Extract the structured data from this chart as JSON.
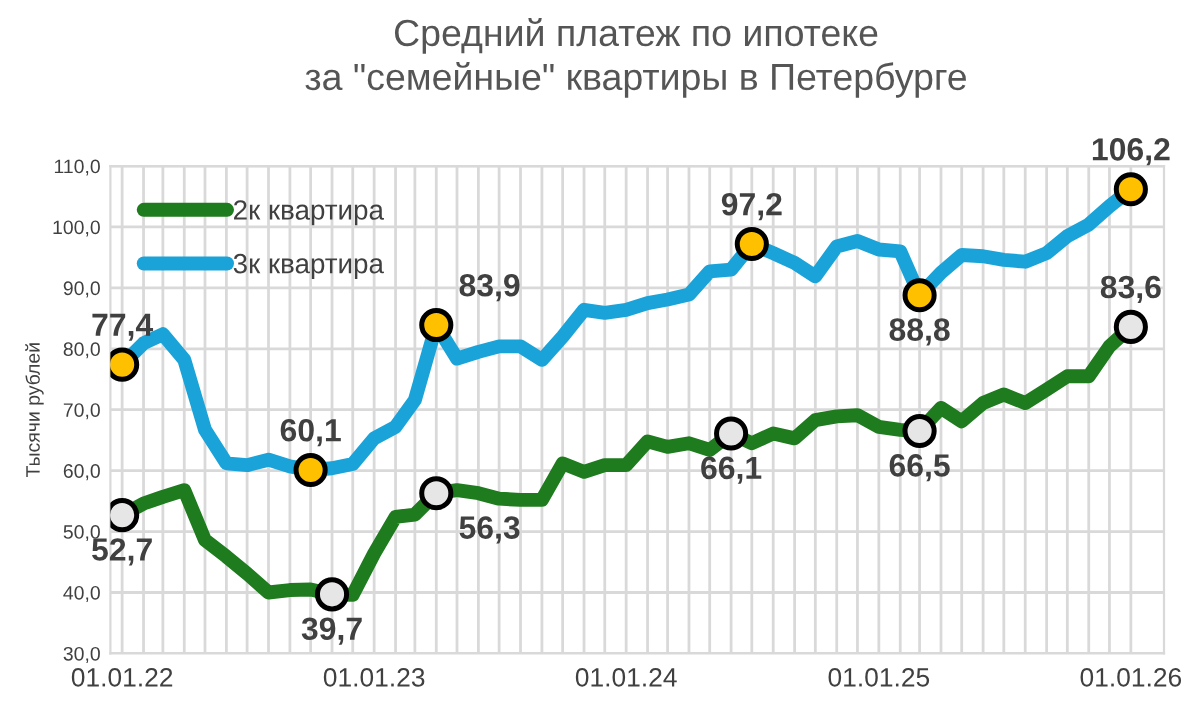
{
  "chart_data": {
    "type": "line",
    "title": "Средний платеж по ипотеке\nза \"семейные\" квартиры в Петербурге",
    "ylabel": "Тысячи рублей",
    "x": [
      "2022-01",
      "2022-02",
      "2022-03",
      "2022-04",
      "2022-05",
      "2022-06",
      "2022-07",
      "2022-08",
      "2022-09",
      "2022-10",
      "2022-11",
      "2022-12",
      "2023-01",
      "2023-02",
      "2023-03",
      "2023-04",
      "2023-05",
      "2023-06",
      "2023-07",
      "2023-08",
      "2023-09",
      "2023-10",
      "2023-11",
      "2023-12",
      "2024-01",
      "2024-02",
      "2024-03",
      "2024-04",
      "2024-05",
      "2024-06",
      "2024-07",
      "2024-08",
      "2024-09",
      "2024-10",
      "2024-11",
      "2024-12",
      "2025-01",
      "2025-02",
      "2025-03",
      "2025-04",
      "2025-05",
      "2025-06",
      "2025-07",
      "2025-08",
      "2025-09",
      "2025-10",
      "2025-11",
      "2025-12",
      "2026-01"
    ],
    "series": [
      {
        "name": "2к квартира",
        "color": "#1e7b1e",
        "values": [
          52.7,
          54.6,
          55.7,
          56.8,
          48.6,
          45.9,
          43.1,
          40.0,
          40.4,
          40.5,
          39.7,
          39.6,
          46.4,
          52.4,
          52.8,
          56.3,
          56.8,
          56.3,
          55.4,
          55.2,
          55.2,
          61.2,
          59.8,
          60.9,
          60.9,
          64.8,
          63.9,
          64.5,
          63.4,
          66.1,
          64.5,
          66.1,
          65.3,
          68.3,
          68.9,
          69.1,
          67.2,
          66.7,
          66.5,
          70.3,
          68.1,
          71.1,
          72.5,
          71.1,
          73.3,
          75.5,
          75.5,
          80.4,
          83.6
        ]
      },
      {
        "name": "3к квартира",
        "color": "#1aa3d9",
        "values": [
          77.4,
          80.9,
          82.4,
          78.2,
          66.7,
          61.2,
          60.9,
          61.8,
          60.7,
          60.1,
          60.4,
          61.1,
          65.3,
          67.2,
          71.6,
          83.9,
          78.4,
          79.5,
          80.4,
          80.4,
          78.2,
          82.0,
          86.4,
          85.9,
          86.4,
          87.5,
          88.1,
          88.9,
          92.7,
          93.0,
          97.2,
          95.7,
          94.1,
          91.9,
          96.8,
          97.7,
          96.3,
          96.0,
          88.8,
          92.5,
          95.4,
          95.2,
          94.6,
          94.3,
          95.7,
          98.5,
          100.4,
          103.4,
          106.2
        ]
      },
      {
        "type": "scatter",
        "color": "#e6e6e6",
        "x": [
          "2022-01",
          "2022-11",
          "2023-04",
          "2024-06",
          "2025-03",
          "2026-01"
        ],
        "values": [
          52.7,
          39.7,
          56.3,
          66.1,
          66.5,
          83.6
        ],
        "value_labels": [
          "52,7",
          "39,7",
          "56,3",
          "66,1",
          "66,5",
          "83,6"
        ]
      },
      {
        "type": "scatter",
        "color": "#ffc000",
        "x": [
          "2022-01",
          "2022-10",
          "2023-04",
          "2024-07",
          "2025-03",
          "2026-01"
        ],
        "values": [
          77.4,
          60.1,
          83.9,
          97.2,
          88.8,
          106.2
        ],
        "value_labels": [
          "77,4",
          "60,1",
          "83,9",
          "97,2",
          "88,8",
          "106,2"
        ]
      }
    ],
    "xlim": [
      "2021-12-15",
      "2026-02-18"
    ],
    "xticks": [
      {
        "value": "2022-01",
        "label": "01.01.22"
      },
      {
        "value": "2022-02",
        "label": null
      },
      {
        "value": "2022-03",
        "label": null
      },
      {
        "value": "2022-04",
        "label": null
      },
      {
        "value": "2022-05",
        "label": null
      },
      {
        "value": "2022-06",
        "label": null
      },
      {
        "value": "2022-07",
        "label": null
      },
      {
        "value": "2022-08",
        "label": null
      },
      {
        "value": "2022-09",
        "label": null
      },
      {
        "value": "2022-10",
        "label": null
      },
      {
        "value": "2022-11",
        "label": null
      },
      {
        "value": "2022-12",
        "label": null
      },
      {
        "value": "2023-01",
        "label": "01.01.23"
      },
      {
        "value": "2023-02",
        "label": null
      },
      {
        "value": "2023-03",
        "label": null
      },
      {
        "value": "2023-04",
        "label": null
      },
      {
        "value": "2023-05",
        "label": null
      },
      {
        "value": "2023-06",
        "label": null
      },
      {
        "value": "2023-07",
        "label": null
      },
      {
        "value": "2023-08",
        "label": null
      },
      {
        "value": "2023-09",
        "label": null
      },
      {
        "value": "2023-10",
        "label": null
      },
      {
        "value": "2023-11",
        "label": null
      },
      {
        "value": "2023-12",
        "label": null
      },
      {
        "value": "2024-01",
        "label": "01.01.24"
      },
      {
        "value": "2024-02",
        "label": null
      },
      {
        "value": "2024-03",
        "label": null
      },
      {
        "value": "2024-04",
        "label": null
      },
      {
        "value": "2024-05",
        "label": null
      },
      {
        "value": "2024-06",
        "label": null
      },
      {
        "value": "2024-07",
        "label": null
      },
      {
        "value": "2024-08",
        "label": null
      },
      {
        "value": "2024-09",
        "label": null
      },
      {
        "value": "2024-10",
        "label": null
      },
      {
        "value": "2024-11",
        "label": null
      },
      {
        "value": "2024-12",
        "label": null
      },
      {
        "value": "2025-01",
        "label": "01.01.25"
      },
      {
        "value": "2025-02",
        "label": null
      },
      {
        "value": "2025-03",
        "label": null
      },
      {
        "value": "2025-04",
        "label": null
      },
      {
        "value": "2025-05",
        "label": null
      },
      {
        "value": "2025-06",
        "label": null
      },
      {
        "value": "2025-07",
        "label": null
      },
      {
        "value": "2025-08",
        "label": null
      },
      {
        "value": "2025-09",
        "label": null
      },
      {
        "value": "2025-10",
        "label": null
      },
      {
        "value": "2025-11",
        "label": null
      },
      {
        "value": "2025-12",
        "label": null
      },
      {
        "value": "2026-01",
        "label": "01.01.26"
      }
    ],
    "ylim": [
      30,
      110
    ],
    "yticks": [
      {
        "value": 30,
        "label": "30,0"
      },
      {
        "value": 40,
        "label": "40,0"
      },
      {
        "value": 50,
        "label": "50,0"
      },
      {
        "value": 60,
        "label": "60,0"
      },
      {
        "value": 70,
        "label": "70,0"
      },
      {
        "value": 80,
        "label": "80,0"
      },
      {
        "value": 90,
        "label": "90,0"
      },
      {
        "value": 100,
        "label": "100,0"
      },
      {
        "value": 110,
        "label": "110,0"
      }
    ],
    "grid": true,
    "legend": "top left"
  }
}
